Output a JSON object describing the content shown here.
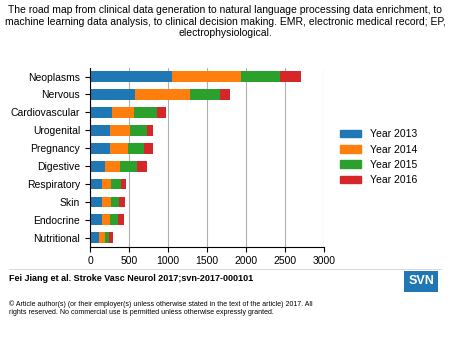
{
  "chart_data": {
    "type": "bar",
    "orientation": "horizontal",
    "stacked": true,
    "title": "The road map from clinical data generation to natural language processing data enrichment, to machine learning data analysis, to clinical decision making. EMR, electronic medical record; EP, electrophysiological.",
    "categories": [
      "Neoplasms",
      "Nervous",
      "Cardiovascular",
      "Urogenital",
      "Pregnancy",
      "Digestive",
      "Respiratory",
      "Skin",
      "Endocrine",
      "Nutritional"
    ],
    "series": [
      {
        "name": "Year 2013",
        "values": [
          1050,
          580,
          280,
          260,
          260,
          190,
          155,
          155,
          155,
          120
        ]
      },
      {
        "name": "Year 2014",
        "values": [
          880,
          700,
          290,
          250,
          230,
          195,
          115,
          110,
          100,
          70
        ]
      },
      {
        "name": "Year 2015",
        "values": [
          500,
          390,
          290,
          220,
          205,
          215,
          125,
          110,
          110,
          55
        ]
      },
      {
        "name": "Year 2016",
        "values": [
          270,
          130,
          120,
          80,
          115,
          125,
          65,
          75,
          65,
          50
        ]
      }
    ],
    "xlim": [
      0,
      3000
    ],
    "xticks": [
      0,
      500,
      1000,
      1500,
      2000,
      2500,
      3000
    ],
    "grid": true,
    "legend": "center left",
    "annotations": [
      "Fei Jiang et al. Stroke Vasc Neurol 2017;svn-2017-000101",
      "© Article author(s) (or their employer(s) unless otherwise stated in the text of the article) 2017. All\nrights reserved. No commercial use is permitted unless otherwise expressly granted.",
      "SVN"
    ]
  }
}
